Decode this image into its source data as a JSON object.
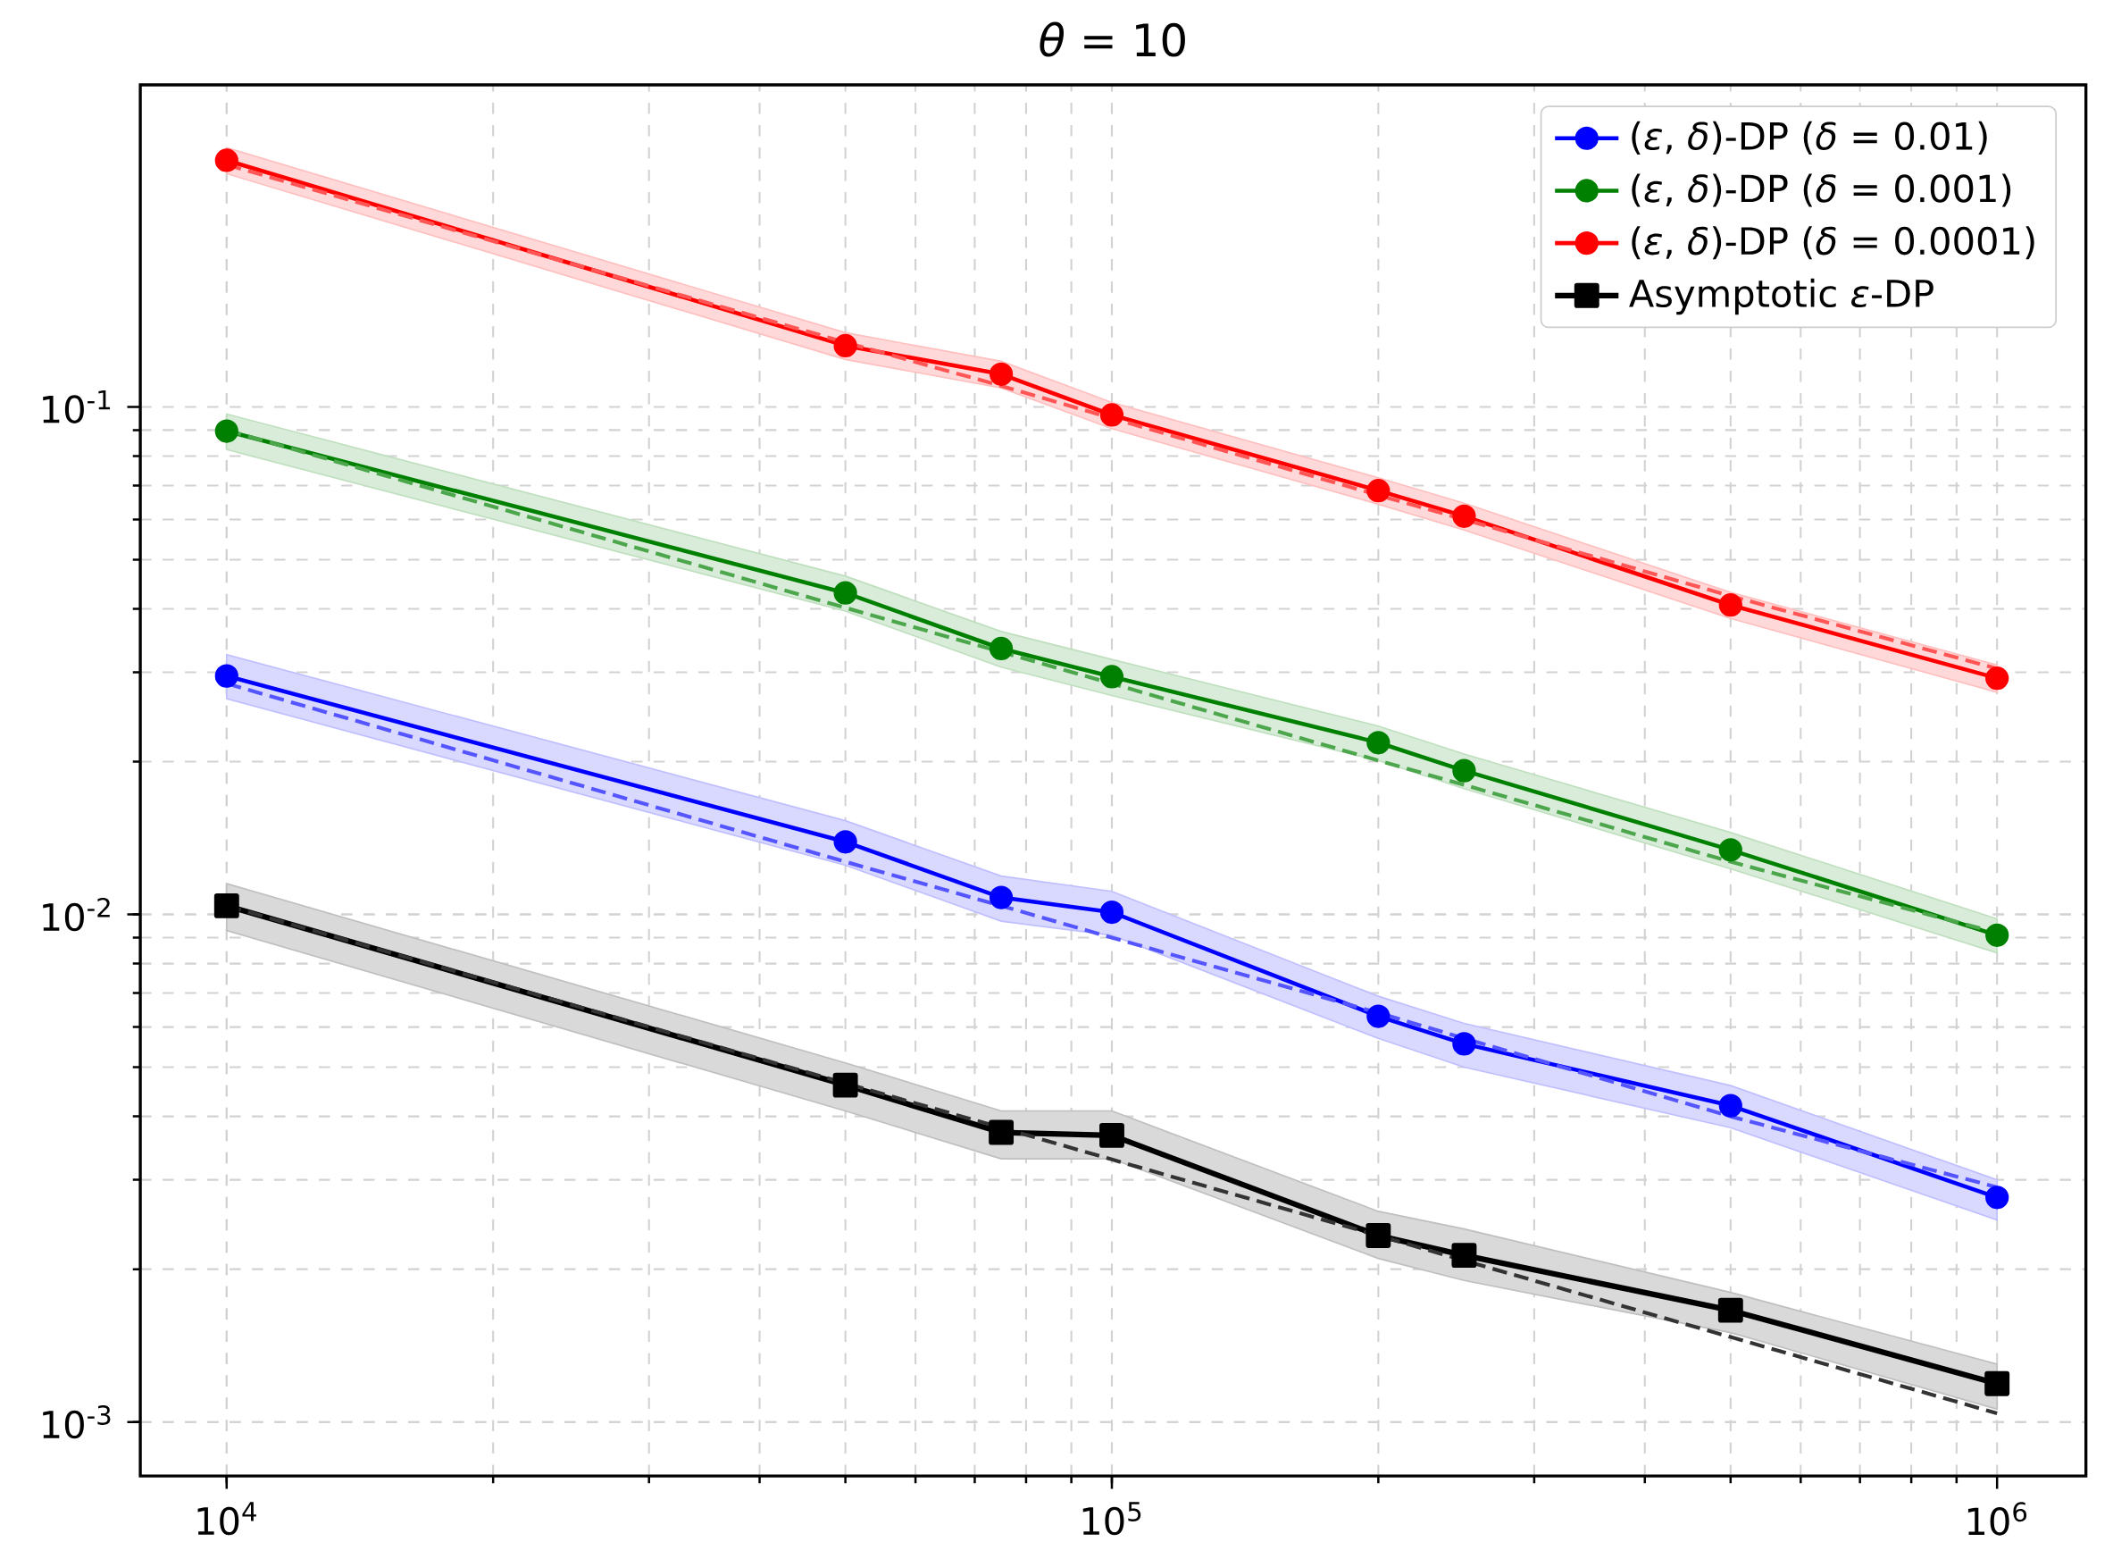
{
  "chart_data": {
    "type": "line",
    "title": "*θ* = 10",
    "log": "xy",
    "grid": true,
    "legend": "top right",
    "x": [
      10000,
      50000,
      75000,
      100000,
      200000,
      250000,
      500000,
      1000000
    ],
    "xlim": [
      7990,
      1260000
    ],
    "ylim": [
      0.000783,
      0.431
    ],
    "xticks": [
      {
        "value": 10000,
        "label": "10$^{4}$"
      },
      {
        "value": 100000,
        "label": "10$^{5}$"
      },
      {
        "value": 1000000,
        "label": "10$^{6}$"
      }
    ],
    "yticks": [
      {
        "value": 0.001,
        "label": "10$^{-3}$"
      },
      {
        "value": 0.01,
        "label": "10$^{-2}$"
      },
      {
        "value": 0.1,
        "label": "10$^{-1}$"
      }
    ],
    "series": [
      {
        "name": "(*ε*, *δ*)-DP (*δ* = 0.01)",
        "color": "#0000ff",
        "marker": "circle",
        "values": [
          0.0295,
          0.0139,
          0.0108,
          0.0101,
          0.0063,
          0.00556,
          0.0042,
          0.00277
        ],
        "lower": [
          0.0266,
          0.0125,
          0.0097,
          0.0091,
          0.0057,
          0.005,
          0.0038,
          0.0025
        ],
        "upper": [
          0.0325,
          0.0153,
          0.0119,
          0.0111,
          0.0069,
          0.0061,
          0.0046,
          0.003
        ]
      },
      {
        "name": "(*ε*, *δ*)-DP (*δ* = 0.001)",
        "color": "#008000",
        "marker": "circle",
        "values": [
          0.0896,
          0.043,
          0.0334,
          0.0294,
          0.0218,
          0.0192,
          0.0134,
          0.0091
        ],
        "lower": [
          0.0824,
          0.0396,
          0.0307,
          0.027,
          0.0201,
          0.0177,
          0.0123,
          0.0084
        ],
        "upper": [
          0.0968,
          0.0464,
          0.0361,
          0.0318,
          0.0235,
          0.0207,
          0.0145,
          0.0098
        ]
      },
      {
        "name": "(*ε*, *δ*)-DP (*δ* = 0.0001)",
        "color": "#ff0000",
        "marker": "circle",
        "values": [
          0.306,
          0.132,
          0.116,
          0.0964,
          0.0684,
          0.0609,
          0.0407,
          0.0292
        ],
        "lower": [
          0.288,
          0.124,
          0.109,
          0.0906,
          0.0643,
          0.0572,
          0.0383,
          0.0274
        ],
        "upper": [
          0.324,
          0.14,
          0.123,
          0.102,
          0.0725,
          0.0646,
          0.0431,
          0.031
        ]
      },
      {
        "name": "Asymptotic *ε*-DP",
        "color": "#000000",
        "marker": "square",
        "values": [
          0.0104,
          0.00461,
          0.00372,
          0.00367,
          0.00233,
          0.00213,
          0.00166,
          0.00119
        ],
        "lower": [
          0.0093,
          0.0041,
          0.0033,
          0.0033,
          0.0021,
          0.0019,
          0.0015,
          0.00106
        ],
        "upper": [
          0.0115,
          0.0051,
          0.0041,
          0.0041,
          0.0026,
          0.0024,
          0.0018,
          0.0013
        ]
      },
      {
        "color": "#5555ff",
        "line_style": "dashed",
        "marker": "none",
        "values": [
          0.0285,
          0.0127,
          0.0104,
          0.009,
          0.0064,
          0.0057,
          0.004,
          0.0029
        ]
      },
      {
        "color": "#4ca64c",
        "line_style": "dashed",
        "marker": "none",
        "values": [
          0.09,
          0.0402,
          0.0329,
          0.0285,
          0.0201,
          0.018,
          0.0127,
          0.0092
        ]
      },
      {
        "color": "#ff5555",
        "line_style": "dashed",
        "marker": "none",
        "values": [
          0.3,
          0.134,
          0.11,
          0.095,
          0.067,
          0.06,
          0.0424,
          0.0305
        ]
      },
      {
        "color": "#333333",
        "line_style": "dashed",
        "marker": "none",
        "values": [
          0.0104,
          0.00465,
          0.0038,
          0.00329,
          0.00233,
          0.00208,
          0.00147,
          0.00104
        ]
      }
    ]
  }
}
